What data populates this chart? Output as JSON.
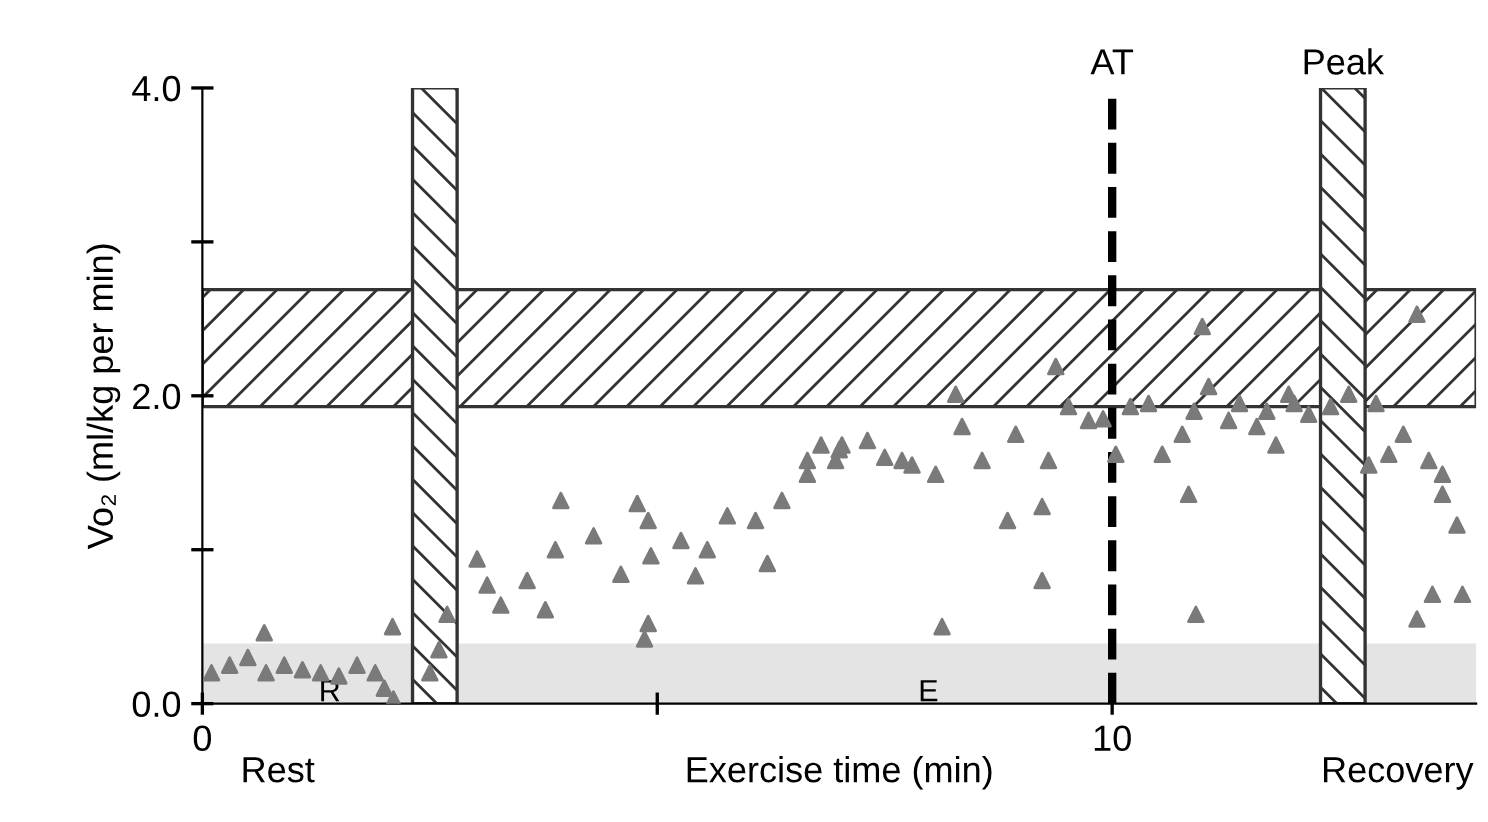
{
  "chart_data": {
    "type": "scatter",
    "xlabel": "Exercise time (min)",
    "ylabel": "Vo₂ (ml/kg per min)",
    "xlim": [
      0,
      14.0
    ],
    "xticks": [
      0,
      {
        "value": 5,
        "label": null
      },
      10
    ],
    "ylim": [
      0,
      4.0
    ],
    "yticks": [
      {
        "value": 0,
        "label": "0.0"
      },
      {
        "value": 1,
        "label": null
      },
      {
        "value": 2,
        "label": "2.0"
      },
      {
        "value": 3,
        "label": null
      },
      {
        "value": 4,
        "label": "4.0"
      }
    ],
    "grid": false,
    "marker": "triangle",
    "series": [
      {
        "color": "#7a7a7a",
        "x": [
          0.1,
          0.3,
          0.5,
          0.68,
          0.7,
          0.9,
          1.1,
          1.3,
          1.5,
          1.7,
          1.9,
          2.0,
          2.09,
          2.1,
          2.5,
          2.6,
          2.69,
          3.02,
          3.13,
          3.28,
          3.57,
          3.77,
          3.88,
          3.94,
          4.3,
          4.6,
          4.78,
          4.86,
          4.9,
          4.9,
          4.93,
          5.26,
          5.42,
          5.55,
          5.77,
          6.08,
          6.21,
          6.37,
          6.65,
          6.65,
          6.8,
          6.96,
          7.0,
          7.03,
          7.31,
          7.5,
          7.69,
          7.8,
          8.06,
          8.13,
          8.28,
          8.35,
          8.57,
          8.85,
          8.94,
          9.23,
          9.23,
          9.3,
          9.38,
          9.52,
          9.74,
          9.9,
          10.04,
          10.2,
          10.4,
          10.55,
          10.77,
          10.84,
          10.9,
          10.92,
          10.99,
          11.06,
          11.28,
          11.4,
          11.59,
          11.7,
          11.8,
          11.94,
          12.0,
          12.16,
          12.4,
          12.6,
          12.82,
          12.9,
          13.04,
          13.2,
          13.35,
          13.35,
          13.48,
          13.52,
          13.63,
          13.63,
          13.79,
          13.85
        ],
        "values": [
          0.2,
          0.25,
          0.3,
          0.46,
          0.2,
          0.25,
          0.22,
          0.2,
          0.18,
          0.25,
          0.2,
          0.1,
          0.5,
          0.03,
          0.2,
          0.35,
          0.58,
          0.94,
          0.77,
          0.64,
          0.8,
          0.61,
          1.0,
          1.32,
          1.09,
          0.84,
          1.3,
          0.42,
          1.19,
          0.52,
          0.96,
          1.06,
          0.83,
          1.0,
          1.22,
          1.19,
          0.91,
          1.32,
          1.49,
          1.58,
          1.68,
          1.58,
          1.65,
          1.68,
          1.71,
          1.6,
          1.58,
          1.55,
          1.49,
          0.5,
          2.01,
          1.8,
          1.58,
          1.19,
          1.75,
          0.8,
          1.28,
          1.58,
          2.19,
          1.93,
          1.84,
          1.85,
          1.62,
          1.93,
          1.95,
          1.62,
          1.75,
          1.36,
          1.9,
          0.58,
          2.45,
          2.06,
          1.84,
          1.95,
          1.8,
          1.9,
          1.68,
          2.01,
          1.95,
          1.88,
          1.93,
          2.01,
          1.55,
          1.95,
          1.62,
          1.75,
          2.53,
          0.55,
          1.58,
          0.71,
          1.49,
          1.36,
          1.16,
          0.71
        ]
      }
    ],
    "bands": [
      {
        "axis": "y",
        "from": 1.93,
        "to": 2.69
      },
      {
        "axis": "y",
        "from": 0,
        "to": 0.38,
        "color": "#e4e4e4"
      },
      {
        "axis": "x",
        "from": 2.31,
        "to": 2.8
      },
      {
        "axis": "x",
        "from": 12.29,
        "to": 12.78,
        "label": "Peak"
      }
    ],
    "ref_lines": [
      {
        "axis": "x",
        "value": 10.0,
        "label": "AT",
        "color": "#000000",
        "line_style": "dashed"
      }
    ],
    "annotations": [
      "R",
      "E",
      "Rest",
      "Recovery"
    ]
  }
}
